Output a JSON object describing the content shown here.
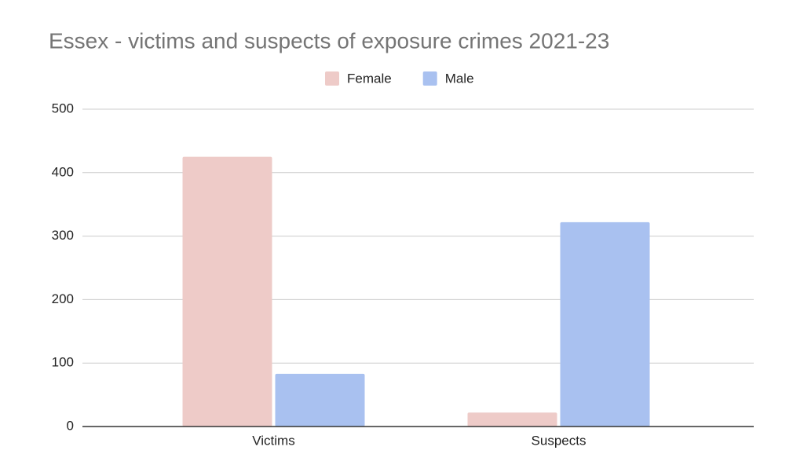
{
  "chart_data": {
    "type": "bar",
    "title": "Essex - victims and suspects of exposure crimes 2021-23",
    "categories": [
      "Victims",
      "Suspects"
    ],
    "series": [
      {
        "name": "Female",
        "color": "#eecbc8",
        "values": [
          425,
          22
        ]
      },
      {
        "name": "Male",
        "color": "#a9c1f0",
        "values": [
          83,
          322
        ]
      }
    ],
    "ylim": [
      0,
      500
    ],
    "yticks": [
      0,
      100,
      200,
      300,
      400,
      500
    ],
    "grid": true,
    "legend": "top"
  }
}
